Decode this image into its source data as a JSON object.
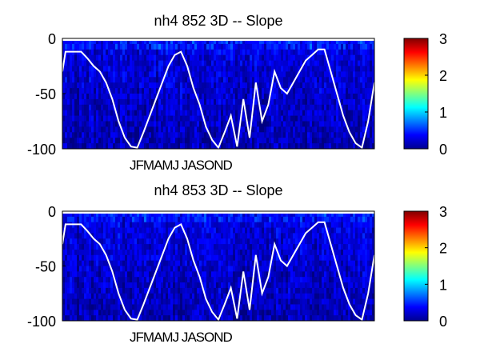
{
  "chart_data": [
    {
      "type": "heatmap",
      "title": "nh4  852 3D   -- Slope",
      "xlabel": "",
      "ylabel": "",
      "x_tick_labels": [
        "J",
        "F",
        "M",
        "A",
        "M",
        "J",
        "J",
        "A",
        "S",
        "O",
        "N",
        "D"
      ],
      "y_ticks": [
        0,
        -50,
        -100
      ],
      "ylim": [
        -100,
        0
      ],
      "colorbar": {
        "ticks": [
          0,
          1,
          2,
          3
        ],
        "range": [
          0,
          3
        ],
        "colormap": "jet"
      },
      "background_value_range": [
        0.05,
        0.6
      ],
      "white_line": {
        "description_points": [
          [
            0.0,
            -30
          ],
          [
            0.01,
            -12
          ],
          [
            0.06,
            -12
          ],
          [
            0.08,
            -18
          ],
          [
            0.1,
            -25
          ],
          [
            0.12,
            -30
          ],
          [
            0.14,
            -40
          ],
          [
            0.16,
            -55
          ],
          [
            0.18,
            -75
          ],
          [
            0.2,
            -90
          ],
          [
            0.22,
            -98
          ],
          [
            0.24,
            -99
          ],
          [
            0.26,
            -85
          ],
          [
            0.28,
            -70
          ],
          [
            0.3,
            -55
          ],
          [
            0.32,
            -40
          ],
          [
            0.34,
            -25
          ],
          [
            0.36,
            -15
          ],
          [
            0.38,
            -12
          ],
          [
            0.4,
            -25
          ],
          [
            0.42,
            -45
          ],
          [
            0.44,
            -60
          ],
          [
            0.46,
            -80
          ],
          [
            0.48,
            -92
          ],
          [
            0.5,
            -99
          ],
          [
            0.52,
            -85
          ],
          [
            0.54,
            -70
          ],
          [
            0.56,
            -98
          ],
          [
            0.58,
            -55
          ],
          [
            0.6,
            -90
          ],
          [
            0.62,
            -40
          ],
          [
            0.64,
            -75
          ],
          [
            0.66,
            -60
          ],
          [
            0.68,
            -30
          ],
          [
            0.7,
            -45
          ],
          [
            0.72,
            -50
          ],
          [
            0.74,
            -40
          ],
          [
            0.76,
            -30
          ],
          [
            0.78,
            -20
          ],
          [
            0.8,
            -15
          ],
          [
            0.82,
            -10
          ],
          [
            0.84,
            -10
          ],
          [
            0.86,
            -30
          ],
          [
            0.88,
            -50
          ],
          [
            0.9,
            -70
          ],
          [
            0.92,
            -85
          ],
          [
            0.94,
            -95
          ],
          [
            0.96,
            -99
          ],
          [
            0.98,
            -75
          ],
          [
            1.0,
            -40
          ]
        ]
      }
    },
    {
      "type": "heatmap",
      "title": "nh4  853 3D   -- Slope",
      "xlabel": "",
      "ylabel": "",
      "x_tick_labels": [
        "J",
        "F",
        "M",
        "A",
        "M",
        "J",
        "J",
        "A",
        "S",
        "O",
        "N",
        "D"
      ],
      "y_ticks": [
        0,
        -50,
        -100
      ],
      "ylim": [
        -100,
        0
      ],
      "colorbar": {
        "ticks": [
          0,
          1,
          2,
          3
        ],
        "range": [
          0,
          3
        ],
        "colormap": "jet"
      },
      "background_value_range": [
        0.05,
        0.6
      ],
      "white_line": {
        "description_points": [
          [
            0.0,
            -30
          ],
          [
            0.01,
            -12
          ],
          [
            0.06,
            -12
          ],
          [
            0.08,
            -18
          ],
          [
            0.1,
            -25
          ],
          [
            0.12,
            -30
          ],
          [
            0.14,
            -40
          ],
          [
            0.16,
            -55
          ],
          [
            0.18,
            -75
          ],
          [
            0.2,
            -90
          ],
          [
            0.22,
            -98
          ],
          [
            0.24,
            -99
          ],
          [
            0.26,
            -85
          ],
          [
            0.28,
            -70
          ],
          [
            0.3,
            -55
          ],
          [
            0.32,
            -40
          ],
          [
            0.34,
            -25
          ],
          [
            0.36,
            -15
          ],
          [
            0.38,
            -12
          ],
          [
            0.4,
            -25
          ],
          [
            0.42,
            -45
          ],
          [
            0.44,
            -60
          ],
          [
            0.46,
            -80
          ],
          [
            0.48,
            -92
          ],
          [
            0.5,
            -99
          ],
          [
            0.52,
            -85
          ],
          [
            0.54,
            -70
          ],
          [
            0.56,
            -98
          ],
          [
            0.58,
            -55
          ],
          [
            0.6,
            -90
          ],
          [
            0.62,
            -40
          ],
          [
            0.64,
            -75
          ],
          [
            0.66,
            -60
          ],
          [
            0.68,
            -30
          ],
          [
            0.7,
            -45
          ],
          [
            0.72,
            -50
          ],
          [
            0.74,
            -40
          ],
          [
            0.76,
            -30
          ],
          [
            0.78,
            -20
          ],
          [
            0.8,
            -15
          ],
          [
            0.82,
            -10
          ],
          [
            0.84,
            -10
          ],
          [
            0.86,
            -30
          ],
          [
            0.88,
            -50
          ],
          [
            0.9,
            -70
          ],
          [
            0.92,
            -85
          ],
          [
            0.94,
            -95
          ],
          [
            0.96,
            -99
          ],
          [
            0.98,
            -75
          ],
          [
            1.0,
            -40
          ]
        ]
      }
    }
  ]
}
